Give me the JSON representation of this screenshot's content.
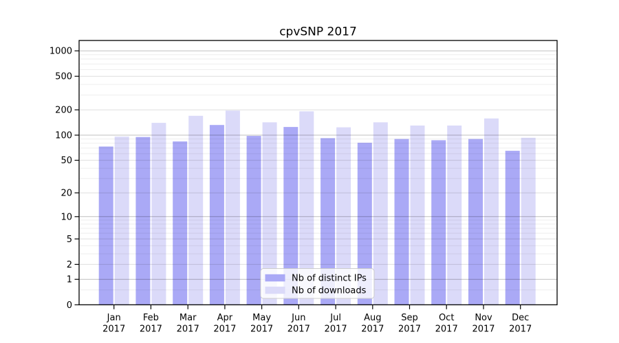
{
  "chart_data": {
    "type": "bar",
    "title": "cpvSNP 2017",
    "categories": [
      "Jan",
      "Feb",
      "Mar",
      "Apr",
      "May",
      "Jun",
      "Jul",
      "Aug",
      "Sep",
      "Oct",
      "Nov",
      "Dec"
    ],
    "category_year": "2017",
    "series": [
      {
        "name": "Nb of distinct IPs",
        "color": "#aaa9f6",
        "values": [
          73,
          95,
          84,
          132,
          98,
          125,
          92,
          81,
          90,
          87,
          90,
          65
        ]
      },
      {
        "name": "Nb of downloads",
        "color": "#dbdaf9",
        "values": [
          96,
          140,
          170,
          196,
          142,
          192,
          124,
          142,
          130,
          130,
          158,
          93
        ]
      }
    ],
    "yscale": "log1p",
    "yticks": [
      0,
      1,
      2,
      5,
      10,
      20,
      50,
      100,
      200,
      500,
      1000
    ],
    "ylim": [
      0,
      1325
    ],
    "grid": "both",
    "legend_position": "lower center",
    "text_color": "#000000"
  }
}
